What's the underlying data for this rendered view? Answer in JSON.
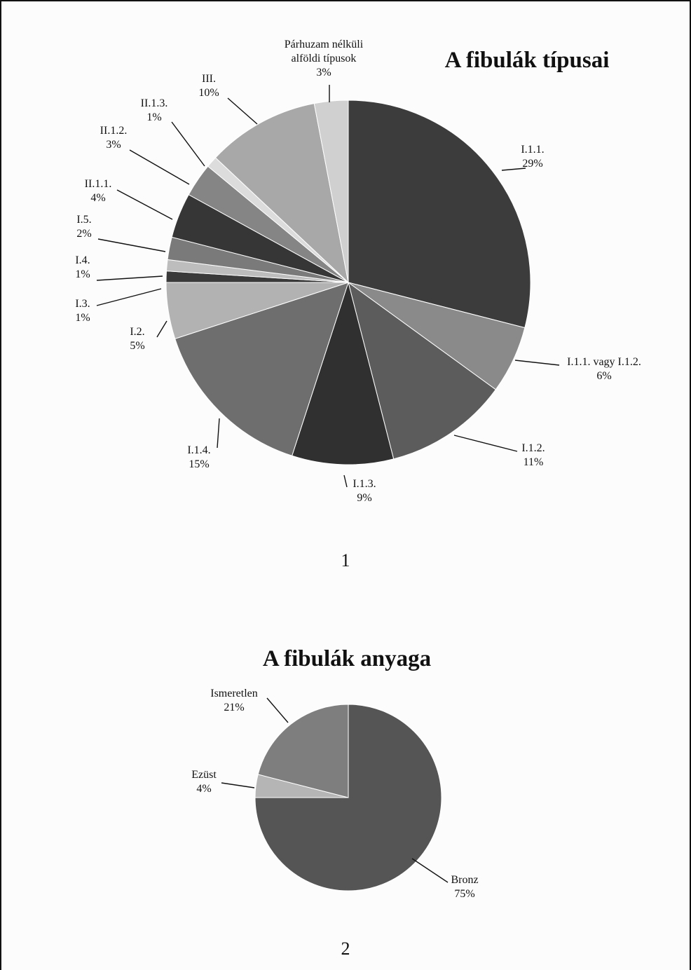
{
  "chart_data": [
    {
      "type": "pie",
      "title": "A fibulák típusai",
      "figure_number": "1",
      "slices": [
        {
          "label": [
            "I.1.1."
          ],
          "value": 29,
          "value_label": "29%",
          "color": "#3c3c3c"
        },
        {
          "label": [
            "I.1.1. vagy I.1.2."
          ],
          "value": 6,
          "value_label": "6%",
          "color": "#8a8a8a"
        },
        {
          "label": [
            "I.1.2."
          ],
          "value": 11,
          "value_label": "11%",
          "color": "#5c5c5c"
        },
        {
          "label": [
            "I.1.3."
          ],
          "value": 9,
          "value_label": "9%",
          "color": "#303030"
        },
        {
          "label": [
            "I.1.4."
          ],
          "value": 15,
          "value_label": "15%",
          "color": "#6e6e6e"
        },
        {
          "label": [
            "I.2."
          ],
          "value": 5,
          "value_label": "5%",
          "color": "#b2b2b2"
        },
        {
          "label": [
            "I.3."
          ],
          "value": 1,
          "value_label": "1%",
          "color": "#3a3a3a"
        },
        {
          "label": [
            "I.4."
          ],
          "value": 1,
          "value_label": "1%",
          "color": "#bdbdbd"
        },
        {
          "label": [
            "I.5."
          ],
          "value": 2,
          "value_label": "2%",
          "color": "#7a7a7a"
        },
        {
          "label": [
            "II.1.1."
          ],
          "value": 4,
          "value_label": "4%",
          "color": "#363636"
        },
        {
          "label": [
            "II.1.2."
          ],
          "value": 3,
          "value_label": "3%",
          "color": "#858585"
        },
        {
          "label": [
            "II.1.3."
          ],
          "value": 1,
          "value_label": "1%",
          "color": "#dcdcdc"
        },
        {
          "label": [
            "III."
          ],
          "value": 10,
          "value_label": "10%",
          "color": "#a8a8a8"
        },
        {
          "label": [
            "Párhuzam nélküli",
            "alföldi típusok"
          ],
          "value": 3,
          "value_label": "3%",
          "color": "#d0d0d0"
        }
      ]
    },
    {
      "type": "pie",
      "title": "A fibulák anyaga",
      "figure_number": "2",
      "slices": [
        {
          "label": [
            "Bronz"
          ],
          "value": 75,
          "value_label": "75%",
          "color": "#555555"
        },
        {
          "label": [
            "Ezüst"
          ],
          "value": 4,
          "value_label": "4%",
          "color": "#b5b5b5"
        },
        {
          "label": [
            "Ismeretlen"
          ],
          "value": 21,
          "value_label": "21%",
          "color": "#7e7e7e"
        }
      ]
    }
  ]
}
